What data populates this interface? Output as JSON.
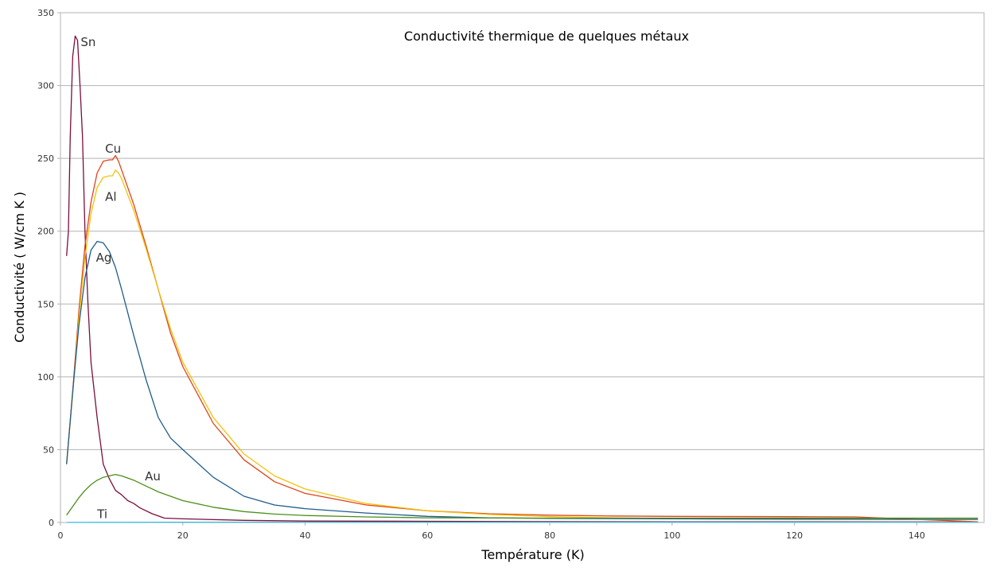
{
  "chart_data": {
    "type": "line",
    "title": "Conductivité thermique de quelques métaux",
    "xlabel": "Température (K)",
    "ylabel": "Conductivité ( W/cm K )",
    "xlim": [
      0,
      151
    ],
    "ylim": [
      0,
      350
    ],
    "xticks": [
      0,
      20,
      40,
      60,
      80,
      100,
      120,
      140
    ],
    "yticks": [
      0,
      50,
      100,
      150,
      200,
      250,
      300,
      350
    ],
    "grid": "horizontal",
    "legend": "inline labels",
    "series": [
      {
        "name": "Sn",
        "color": "#7a0f3c",
        "x": [
          1,
          1.3,
          1.6,
          2,
          2.4,
          2.8,
          3.2,
          3.6,
          4,
          4.5,
          5,
          6,
          7,
          8,
          9,
          10,
          11,
          12,
          13,
          15,
          17,
          20,
          30,
          40,
          60,
          80,
          100,
          120,
          150
        ],
        "y": [
          183,
          200,
          265,
          320,
          334,
          331,
          300,
          265,
          200,
          150,
          110,
          72,
          40,
          30,
          22,
          19,
          15,
          13,
          10,
          6,
          3,
          2.5,
          1.5,
          1,
          0.8,
          0.6,
          0.5,
          0.5,
          0.4
        ]
      },
      {
        "name": "Cu",
        "color": "#e0441a",
        "x": [
          1,
          2,
          3,
          4,
          5,
          6,
          7,
          8,
          8.5,
          9,
          9.5,
          10,
          12,
          14,
          16,
          18,
          20,
          25,
          30,
          35,
          40,
          50,
          60,
          70,
          80,
          90,
          100,
          120,
          130,
          150
        ],
        "y": [
          40,
          90,
          145,
          190,
          220,
          240,
          248,
          249,
          249,
          252,
          248,
          242,
          218,
          190,
          160,
          130,
          107,
          68,
          43,
          28,
          20,
          12,
          8,
          6,
          5,
          4.5,
          4.2,
          4,
          3.8,
          0.5
        ]
      },
      {
        "name": "Al",
        "color": "#f2c20c",
        "x": [
          1,
          2,
          3,
          4,
          5,
          6,
          7,
          8,
          8.5,
          9,
          9.5,
          10,
          12,
          14,
          16,
          18,
          20,
          25,
          30,
          35,
          40,
          50,
          60,
          70,
          80,
          90,
          100,
          120,
          150
        ],
        "y": [
          40,
          88,
          140,
          182,
          212,
          230,
          237,
          238,
          238,
          242,
          240,
          236,
          214,
          188,
          160,
          133,
          110,
          72,
          47,
          32,
          23,
          13,
          8,
          5.5,
          4,
          3.2,
          2.6,
          2.2,
          2
        ]
      },
      {
        "name": "Ag",
        "color": "#1f5c8c",
        "x": [
          1,
          2,
          3,
          4,
          5,
          6,
          7,
          8,
          9,
          10,
          12,
          14,
          16,
          18,
          20,
          25,
          30,
          35,
          40,
          50,
          60,
          70,
          80,
          100,
          150
        ],
        "y": [
          40,
          90,
          135,
          168,
          187,
          193,
          192,
          186,
          175,
          160,
          128,
          98,
          72,
          58,
          50,
          31,
          18,
          12,
          9.5,
          6.5,
          4.2,
          3.2,
          2.8,
          2.5,
          2.2
        ]
      },
      {
        "name": "Au",
        "color": "#4a8f1a",
        "x": [
          1,
          2,
          3,
          4,
          5,
          6,
          7,
          8,
          9,
          10,
          12,
          14,
          16,
          18,
          20,
          25,
          30,
          35,
          40,
          50,
          60,
          80,
          100,
          150
        ],
        "y": [
          5,
          11,
          17,
          22,
          26,
          29,
          31,
          32,
          33,
          32,
          29,
          25,
          21,
          18,
          15,
          10.5,
          7.5,
          5.8,
          4.8,
          3.8,
          3.2,
          3,
          3,
          3
        ]
      },
      {
        "name": "Ti",
        "color": "#40b8e0",
        "x": [
          1,
          10,
          20,
          40,
          60,
          80,
          100,
          120,
          150
        ],
        "y": [
          0.05,
          0.1,
          0.15,
          0.2,
          0.22,
          0.22,
          0.22,
          0.22,
          0.22
        ]
      }
    ],
    "annotations": [
      {
        "text": "Sn",
        "x": 3.3,
        "y": 327
      },
      {
        "text": "Cu",
        "x": 7.3,
        "y": 254
      },
      {
        "text": "Al",
        "x": 7.3,
        "y": 221
      },
      {
        "text": "Ag",
        "x": 5.8,
        "y": 179
      },
      {
        "text": "Au",
        "x": 13.8,
        "y": 29
      },
      {
        "text": "Ti",
        "x": 6,
        "y": 3
      }
    ]
  }
}
